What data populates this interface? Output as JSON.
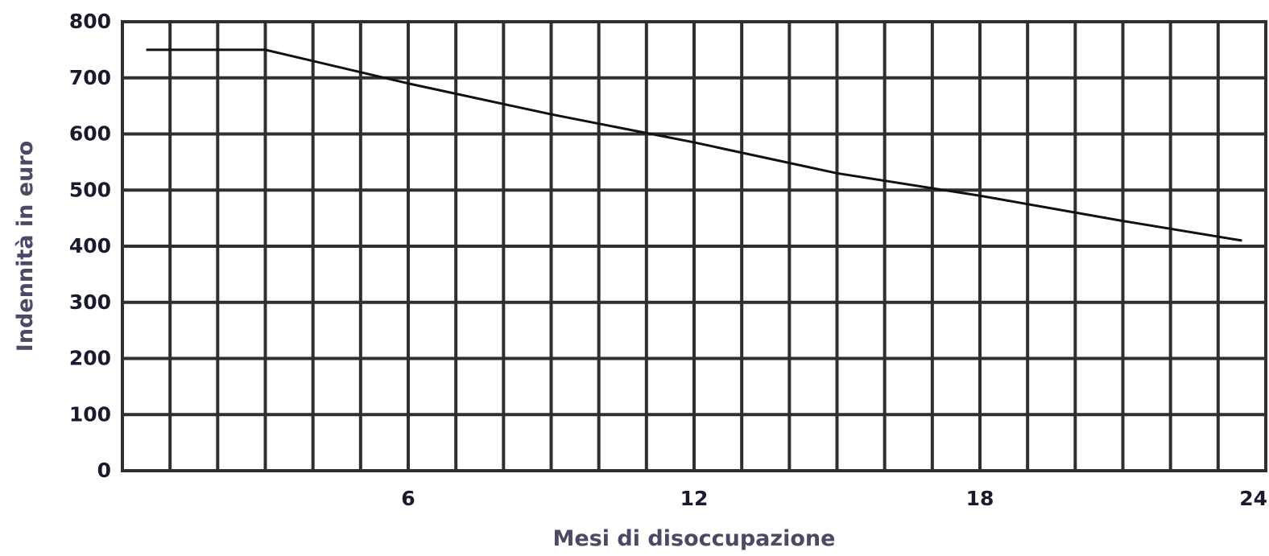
{
  "chart_data": {
    "type": "line",
    "title": "",
    "xlabel": "Mesi di disoccupazione",
    "ylabel": "Indennità in euro",
    "xlim": [
      0,
      24
    ],
    "ylim": [
      0,
      800
    ],
    "xticks": [
      6,
      12,
      18,
      24
    ],
    "xtick_labels": [
      "6",
      "12",
      "18",
      "24"
    ],
    "yticks": [
      0,
      100,
      200,
      300,
      400,
      500,
      600,
      700,
      800
    ],
    "ytick_labels": [
      "0",
      "100",
      "200",
      "300",
      "400",
      "500",
      "600",
      "700",
      "800"
    ],
    "x_grid_step": 1,
    "grid": true,
    "legend": "none",
    "series": [
      {
        "x": [
          0.5,
          3,
          6,
          9,
          12,
          15,
          18,
          21,
          23.5
        ],
        "values": [
          750,
          750,
          690,
          635,
          585,
          530,
          490,
          445,
          410
        ]
      }
    ]
  },
  "colors": {
    "grid": "#2f2f2f",
    "line": "#111111",
    "tick_text": "#1a1a2e",
    "axis_title": "#4a4a66"
  }
}
